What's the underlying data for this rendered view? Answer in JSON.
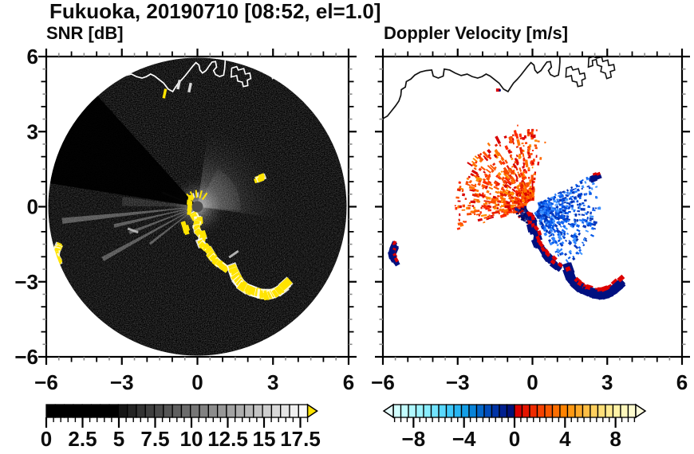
{
  "title_area": {
    "note": "radar PPI figure"
  },
  "chart_data": {
    "type": "heatmap",
    "title": "Fukuoka, 20190710 [08:52, el=1.0]",
    "panels": [
      {
        "id": "snr",
        "title": "SNR [dB]",
        "xlim": [
          -6,
          6
        ],
        "ylim": [
          -6,
          6
        ],
        "xticks": [
          {
            "v": -6,
            "label": "−6"
          },
          {
            "v": -3,
            "label": "−3"
          },
          {
            "v": 0,
            "label": "0"
          },
          {
            "v": 3,
            "label": "3"
          },
          {
            "v": 6,
            "label": "6"
          }
        ],
        "yticks": [
          {
            "v": -6,
            "label": "−6"
          },
          {
            "v": -3,
            "label": "−3"
          },
          {
            "v": 0,
            "label": "0"
          },
          {
            "v": 3,
            "label": "3"
          },
          {
            "v": 6,
            "label": "6"
          }
        ],
        "show_ylabels": true,
        "disk_color": "#000000",
        "background": "#ffffff"
      },
      {
        "id": "doppler",
        "title": "Doppler Velocity [m/s]",
        "xlim": [
          -6,
          6
        ],
        "ylim": [
          -6,
          6
        ],
        "xticks": [
          {
            "v": -6,
            "label": "−6"
          },
          {
            "v": -3,
            "label": "−3"
          },
          {
            "v": 0,
            "label": "0"
          },
          {
            "v": 3,
            "label": "3"
          },
          {
            "v": 6,
            "label": "6"
          }
        ],
        "yticks": [
          {
            "v": -6,
            "label": "−6"
          },
          {
            "v": -3,
            "label": "−3"
          },
          {
            "v": 0,
            "label": "0"
          },
          {
            "v": 3,
            "label": "3"
          },
          {
            "v": 6,
            "label": "6"
          }
        ],
        "show_ylabels": false,
        "disk_color": null,
        "background": "#ffffff"
      }
    ],
    "colorbars": [
      {
        "panel": "snr",
        "min": 0,
        "max": 18,
        "minor_step": 0.5,
        "tick_labels": [
          {
            "v": 0,
            "label": "0"
          },
          {
            "v": 2.5,
            "label": "2.5"
          },
          {
            "v": 5,
            "label": "5"
          },
          {
            "v": 7.5,
            "label": "7.5"
          },
          {
            "v": 10,
            "label": "10"
          },
          {
            "v": 12.5,
            "label": "12.5"
          },
          {
            "v": 15,
            "label": "15"
          },
          {
            "v": 17.5,
            "label": "17.5"
          }
        ],
        "cells": [
          "#000000",
          "#000000",
          "#000000",
          "#000000",
          "#000000",
          "#000000",
          "#000000",
          "#000000",
          "#151515",
          "#242424",
          "#333333",
          "#3f3f3f",
          "#4a4a4a",
          "#555555",
          "#606060",
          "#6b6b6b",
          "#767676",
          "#818181",
          "#8c8c8c",
          "#979797",
          "#a2a2a2",
          "#adadad",
          "#b8b8b8",
          "#c3c3c3",
          "#cecece",
          "#d9d9d9",
          "#e4e4e4",
          "#efefef",
          "#fafafa"
        ],
        "under_arrow": null,
        "over_arrow": "#ffe400"
      },
      {
        "panel": "doppler",
        "min": -9.6,
        "max": 9.6,
        "minor_step": 0.5,
        "tick_labels": [
          {
            "v": -8,
            "label": "−8"
          },
          {
            "v": -4,
            "label": "−4"
          },
          {
            "v": 0,
            "label": "0"
          },
          {
            "v": 4,
            "label": "4"
          },
          {
            "v": 8,
            "label": "8"
          }
        ],
        "cells": [
          "#d2ffff",
          "#c2fcff",
          "#b0f8ff",
          "#9df3ff",
          "#89edff",
          "#72e4ff",
          "#59d8ff",
          "#3fc9fb",
          "#28b5f2",
          "#149ee6",
          "#0883d8",
          "#0366c9",
          "#004bb9",
          "#0034a6",
          "#002090",
          "#001178",
          "#d90000",
          "#e51500",
          "#ef2b00",
          "#f64200",
          "#fa5800",
          "#fd6e00",
          "#ff8300",
          "#ff9812",
          "#ffab2a",
          "#ffbe44",
          "#ffd05e",
          "#ffdf78",
          "#ffea90",
          "#fff2a6",
          "#fff8bc",
          "#fffccf"
        ],
        "under_arrow": "#e6ffff",
        "over_arrow": "#fffddd"
      }
    ],
    "coastline": [
      [
        -6.0,
        3.52
      ],
      [
        -5.82,
        3.62
      ],
      [
        -5.66,
        3.82
      ],
      [
        -5.5,
        4.02
      ],
      [
        -5.36,
        4.22
      ],
      [
        -5.28,
        4.45
      ],
      [
        -5.26,
        4.68
      ],
      [
        -5.1,
        4.78
      ],
      [
        -5.06,
        5.0
      ],
      [
        -4.88,
        5.1
      ],
      [
        -4.72,
        5.26
      ],
      [
        -4.5,
        5.38
      ],
      [
        -4.26,
        5.44
      ],
      [
        -4.04,
        5.46
      ],
      [
        -3.98,
        5.22
      ],
      [
        -3.78,
        5.14
      ],
      [
        -3.58,
        5.22
      ],
      [
        -3.54,
        5.5
      ],
      [
        -3.32,
        5.46
      ],
      [
        -3.1,
        5.34
      ],
      [
        -2.86,
        5.24
      ],
      [
        -2.62,
        5.3
      ],
      [
        -2.42,
        5.2
      ],
      [
        -2.2,
        5.14
      ],
      [
        -2.02,
        5.2
      ],
      [
        -1.86,
        5.3
      ],
      [
        -1.7,
        5.22
      ],
      [
        -1.52,
        5.08
      ],
      [
        -1.34,
        4.94
      ],
      [
        -1.16,
        4.7
      ],
      [
        -0.98,
        4.6
      ],
      [
        -0.88,
        4.76
      ],
      [
        -0.76,
        4.94
      ],
      [
        -0.62,
        5.08
      ],
      [
        -0.48,
        5.24
      ],
      [
        -0.34,
        5.42
      ],
      [
        -0.2,
        5.6
      ],
      [
        -0.06,
        5.76
      ],
      [
        0.06,
        5.66
      ],
      [
        0.1,
        5.46
      ],
      [
        0.2,
        5.34
      ],
      [
        0.34,
        5.44
      ],
      [
        0.46,
        5.62
      ],
      [
        0.58,
        5.78
      ],
      [
        0.72,
        5.8
      ],
      [
        0.76,
        5.58
      ],
      [
        0.64,
        5.44
      ],
      [
        0.72,
        5.28
      ],
      [
        0.88,
        5.2
      ],
      [
        1.04,
        5.26
      ],
      [
        1.08,
        5.52
      ],
      [
        1.1,
        5.78
      ],
      [
        1.1,
        6.0
      ]
    ],
    "port_shapes": [
      [
        [
          1.34,
          5.18
        ],
        [
          1.56,
          5.24
        ],
        [
          1.6,
          5.02
        ],
        [
          1.78,
          4.98
        ],
        [
          1.82,
          4.8
        ],
        [
          2.0,
          4.84
        ],
        [
          1.98,
          5.06
        ],
        [
          2.12,
          5.12
        ],
        [
          2.08,
          5.34
        ],
        [
          1.9,
          5.3
        ],
        [
          1.84,
          5.52
        ],
        [
          1.62,
          5.46
        ],
        [
          1.56,
          5.6
        ],
        [
          1.36,
          5.54
        ]
      ],
      [
        [
          2.24,
          5.58
        ],
        [
          2.42,
          5.64
        ],
        [
          2.4,
          5.84
        ],
        [
          2.56,
          5.88
        ],
        [
          2.6,
          5.66
        ],
        [
          2.78,
          5.6
        ],
        [
          2.74,
          5.4
        ],
        [
          2.92,
          5.34
        ],
        [
          2.98,
          5.12
        ],
        [
          3.16,
          5.18
        ],
        [
          3.12,
          5.4
        ],
        [
          3.3,
          5.46
        ],
        [
          3.26,
          5.68
        ],
        [
          3.06,
          5.64
        ],
        [
          3.02,
          5.86
        ],
        [
          2.82,
          5.8
        ],
        [
          2.78,
          5.98
        ],
        [
          2.58,
          5.94
        ],
        [
          2.44,
          6.0
        ],
        [
          2.26,
          5.94
        ]
      ]
    ],
    "features": {
      "chains": [
        {
          "name": "left-edge-blob",
          "panels": [
            "snr",
            "doppler"
          ],
          "size": 0.9,
          "halo": true,
          "points": [
            [
              -5.52,
              -1.6
            ],
            [
              -5.6,
              -1.78
            ],
            [
              -5.62,
              -1.98
            ],
            [
              -5.52,
              -2.16
            ]
          ]
        },
        {
          "name": "center-chain",
          "panels": [
            "snr",
            "doppler"
          ],
          "size": 1.0,
          "halo": true,
          "points": [
            [
              -0.1,
              -0.34
            ],
            [
              0.04,
              -0.58
            ],
            [
              -0.04,
              -0.9
            ],
            [
              0.18,
              -1.16
            ],
            [
              0.14,
              -1.44
            ],
            [
              0.38,
              -1.66
            ],
            [
              0.56,
              -1.96
            ],
            [
              0.8,
              -2.22
            ],
            [
              1.06,
              -2.42
            ]
          ]
        },
        {
          "name": "big-arc",
          "panels": [
            "snr",
            "doppler"
          ],
          "size": 1.35,
          "halo": true,
          "points": [
            [
              1.42,
              -2.52
            ],
            [
              1.52,
              -2.8
            ],
            [
              1.66,
              -3.02
            ],
            [
              1.86,
              -3.2
            ],
            [
              2.1,
              -3.34
            ],
            [
              2.36,
              -3.44
            ],
            [
              2.62,
              -3.5
            ],
            [
              2.88,
              -3.5
            ],
            [
              3.1,
              -3.42
            ],
            [
              3.32,
              -3.28
            ],
            [
              3.5,
              -3.12
            ]
          ]
        },
        {
          "name": "ne-blob",
          "panels": [
            "snr",
            "doppler"
          ],
          "size": 0.8,
          "halo": true,
          "points": [
            [
              2.42,
              1.1
            ],
            [
              2.58,
              1.16
            ]
          ]
        },
        {
          "name": "center-streak",
          "panels": [
            "snr"
          ],
          "size": 0.7,
          "halo": false,
          "points": [
            [
              -0.28,
              0.3
            ],
            [
              -0.3,
              0.05
            ],
            [
              -0.34,
              -0.2
            ]
          ]
        },
        {
          "name": "below-center-blobs",
          "panels": [
            "snr"
          ],
          "size": 0.8,
          "halo": false,
          "points": [
            [
              -0.52,
              -0.68
            ],
            [
              -0.44,
              -0.95
            ]
          ]
        }
      ],
      "fans": [
        {
          "name": "away-fan-orange",
          "a0": 85,
          "a1": 198,
          "rmin": 0.28,
          "rmax": 3.1,
          "n": 640,
          "bias": 1.5,
          "streak": 9,
          "colors": [
            "#ff2a00",
            "#ff5500",
            "#ff7300",
            "#f84a00",
            "#e82000",
            "#ff8c00",
            "#d90000"
          ]
        },
        {
          "name": "toward-fan-blue",
          "a0": -65,
          "a1": 28,
          "rmin": 0.28,
          "rmax": 2.7,
          "n": 640,
          "bias": 1.6,
          "streak": 5,
          "colors": [
            "#0030b0",
            "#0048d8",
            "#1262f0",
            "#2a80ff",
            "#0a3ac0",
            "#4196ff",
            "#0057e8"
          ]
        },
        {
          "name": "near-clump-navy",
          "a0": 185,
          "a1": 265,
          "rmin": 0.12,
          "rmax": 0.68,
          "n": 130,
          "bias": 1.0,
          "streak": 3,
          "colors": [
            "#001078",
            "#000a60",
            "#1a2a90",
            "#c00000"
          ]
        },
        {
          "name": "sparse-top-red",
          "a0": 78,
          "a1": 104,
          "rmin": 1.6,
          "rmax": 3.4,
          "n": 22,
          "bias": 1.0,
          "streak": 4,
          "colors": [
            "#e00000",
            "#ff3c00",
            "#ff6a00"
          ]
        }
      ],
      "ship_dashes": [
        {
          "p": [
            -1.3,
            4.52
          ],
          "color": "#ffe400"
        },
        {
          "p": [
            -0.74,
            4.88
          ],
          "color": "#e2e2e2"
        },
        {
          "p": [
            -0.3,
            4.76
          ],
          "color": "#d8d8d8"
        }
      ],
      "faint_dashes": [
        {
          "p": [
            1.44,
            -1.9
          ],
          "rot": -35,
          "color": "#d8d8d8"
        },
        {
          "p": [
            -2.56,
            -0.95
          ],
          "rot": 20,
          "color": "#cccccc"
        }
      ],
      "red_dot": [
        -1.38,
        4.66
      ],
      "snr_wedges": {
        "glow_r": 1.25,
        "bright_fan": {
          "a0": -8,
          "a1": 82,
          "r": 3.6
        },
        "inner_fan": {
          "a0": -5,
          "a1": 62,
          "r": 1.7
        },
        "dark_wedge": {
          "a0": 132,
          "a1": 171,
          "r": 6.5
        },
        "rays": [
          {
            "a": 186,
            "len": 5.4
          },
          {
            "a": 193,
            "len": 3.4
          },
          {
            "a": 201,
            "len": 2.9
          },
          {
            "a": 209,
            "len": 4.3
          },
          {
            "a": 218,
            "len": 2.4
          },
          {
            "a": 158,
            "len": 1.5
          },
          {
            "a": 176,
            "len": 3.0,
            "w": 7,
            "op": 0.18
          }
        ]
      },
      "center_ticks": [
        55,
        75,
        95,
        115,
        130
      ]
    }
  }
}
